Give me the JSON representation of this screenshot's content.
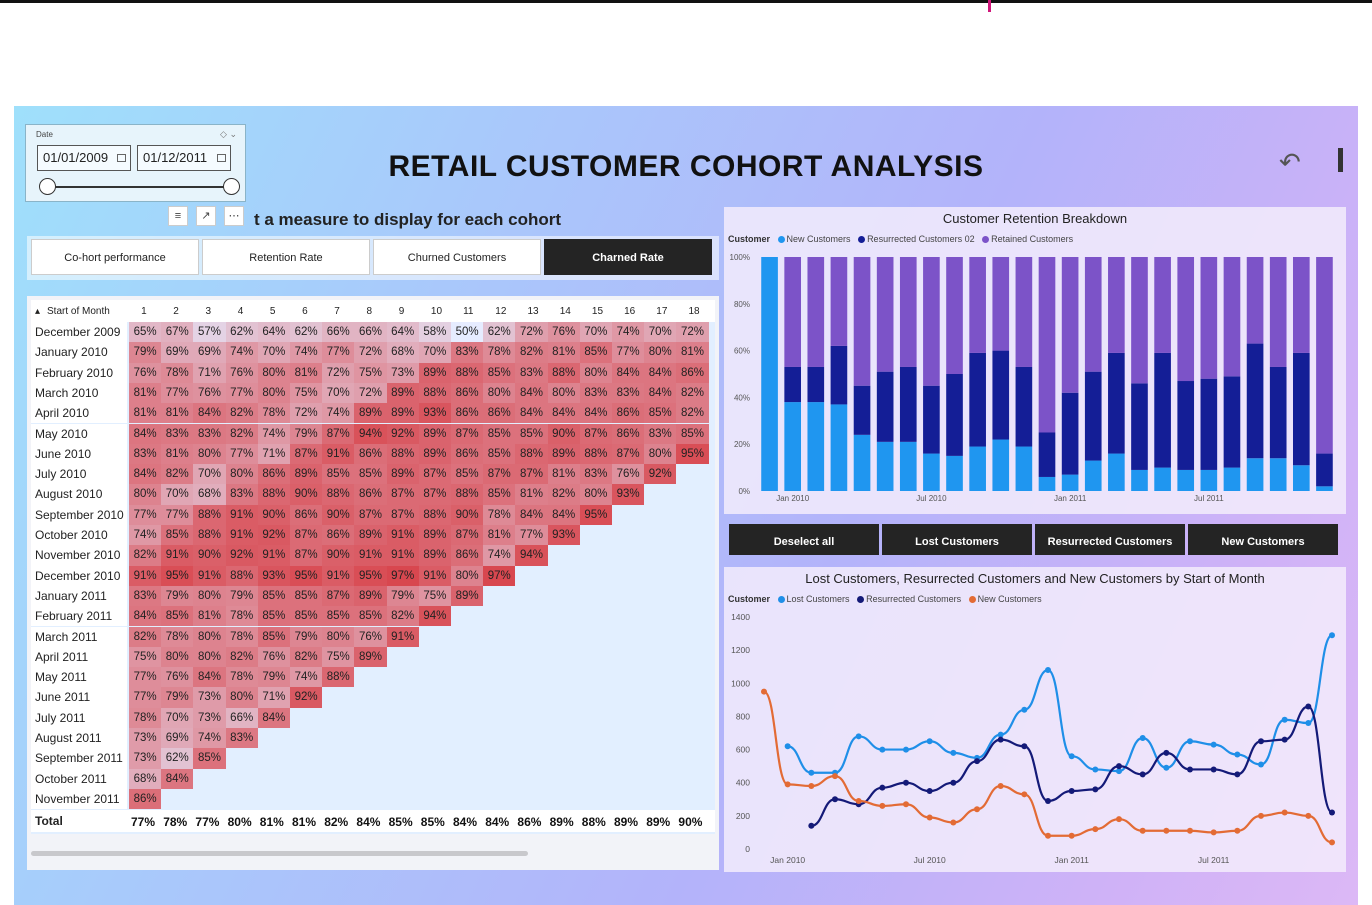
{
  "title": "RETAIL CUSTOMER COHORT ANALYSIS",
  "subtitle": "t a measure to display for each cohort",
  "date_slicer": {
    "label": "Date",
    "start": "01/01/2009",
    "end": "01/12/2011"
  },
  "tabs": [
    "Co-hort performance",
    "Retention Rate",
    "Churned Customers",
    "Charned Rate"
  ],
  "matrix": {
    "corner_label": "Start of Month",
    "columns": [
      "1",
      "2",
      "3",
      "4",
      "5",
      "6",
      "7",
      "8",
      "9",
      "10",
      "11",
      "12",
      "13",
      "14",
      "15",
      "16",
      "17",
      "18"
    ],
    "rows": [
      {
        "label": "December 2009",
        "values": [
          "65%",
          "67%",
          "57%",
          "62%",
          "64%",
          "62%",
          "66%",
          "66%",
          "64%",
          "58%",
          "50%",
          "62%",
          "72%",
          "76%",
          "70%",
          "74%",
          "70%",
          "72%"
        ]
      },
      {
        "label": "January 2010",
        "values": [
          "79%",
          "69%",
          "69%",
          "74%",
          "70%",
          "74%",
          "77%",
          "72%",
          "68%",
          "70%",
          "83%",
          "78%",
          "82%",
          "81%",
          "85%",
          "77%",
          "80%",
          "81%"
        ]
      },
      {
        "label": "February 2010",
        "values": [
          "76%",
          "78%",
          "71%",
          "76%",
          "80%",
          "81%",
          "72%",
          "75%",
          "73%",
          "89%",
          "88%",
          "85%",
          "83%",
          "88%",
          "80%",
          "84%",
          "84%",
          "86%"
        ]
      },
      {
        "label": "March 2010",
        "values": [
          "81%",
          "77%",
          "76%",
          "77%",
          "80%",
          "75%",
          "70%",
          "72%",
          "89%",
          "88%",
          "86%",
          "80%",
          "84%",
          "80%",
          "83%",
          "83%",
          "84%",
          "82%"
        ]
      },
      {
        "label": "April 2010",
        "values": [
          "81%",
          "81%",
          "84%",
          "82%",
          "78%",
          "72%",
          "74%",
          "89%",
          "89%",
          "93%",
          "86%",
          "86%",
          "84%",
          "84%",
          "84%",
          "86%",
          "85%",
          "82%"
        ]
      },
      {
        "label": "May 2010",
        "values": [
          "84%",
          "83%",
          "83%",
          "82%",
          "74%",
          "79%",
          "87%",
          "94%",
          "92%",
          "89%",
          "87%",
          "85%",
          "85%",
          "90%",
          "87%",
          "86%",
          "83%",
          "85%"
        ]
      },
      {
        "label": "June 2010",
        "values": [
          "83%",
          "81%",
          "80%",
          "77%",
          "71%",
          "87%",
          "91%",
          "86%",
          "88%",
          "89%",
          "86%",
          "85%",
          "88%",
          "89%",
          "88%",
          "87%",
          "80%",
          "95%"
        ]
      },
      {
        "label": "July 2010",
        "values": [
          "84%",
          "82%",
          "70%",
          "80%",
          "86%",
          "89%",
          "85%",
          "85%",
          "89%",
          "87%",
          "85%",
          "87%",
          "87%",
          "81%",
          "83%",
          "76%",
          "92%"
        ]
      },
      {
        "label": "August 2010",
        "values": [
          "80%",
          "70%",
          "68%",
          "83%",
          "88%",
          "90%",
          "88%",
          "86%",
          "87%",
          "87%",
          "88%",
          "85%",
          "81%",
          "82%",
          "80%",
          "93%"
        ]
      },
      {
        "label": "September 2010",
        "values": [
          "77%",
          "77%",
          "88%",
          "91%",
          "90%",
          "86%",
          "90%",
          "87%",
          "87%",
          "88%",
          "90%",
          "78%",
          "84%",
          "84%",
          "95%"
        ]
      },
      {
        "label": "October 2010",
        "values": [
          "74%",
          "85%",
          "88%",
          "91%",
          "92%",
          "87%",
          "86%",
          "89%",
          "91%",
          "89%",
          "87%",
          "81%",
          "77%",
          "93%"
        ]
      },
      {
        "label": "November 2010",
        "values": [
          "82%",
          "91%",
          "90%",
          "92%",
          "91%",
          "87%",
          "90%",
          "91%",
          "91%",
          "89%",
          "86%",
          "74%",
          "94%"
        ]
      },
      {
        "label": "December 2010",
        "values": [
          "91%",
          "95%",
          "91%",
          "88%",
          "93%",
          "95%",
          "91%",
          "95%",
          "97%",
          "91%",
          "80%",
          "97%"
        ]
      },
      {
        "label": "January 2011",
        "values": [
          "83%",
          "79%",
          "80%",
          "79%",
          "85%",
          "85%",
          "87%",
          "89%",
          "79%",
          "75%",
          "89%"
        ]
      },
      {
        "label": "February 2011",
        "values": [
          "84%",
          "85%",
          "81%",
          "78%",
          "85%",
          "85%",
          "85%",
          "85%",
          "82%",
          "94%"
        ]
      },
      {
        "label": "March 2011",
        "values": [
          "82%",
          "78%",
          "80%",
          "78%",
          "85%",
          "79%",
          "80%",
          "76%",
          "91%"
        ]
      },
      {
        "label": "April 2011",
        "values": [
          "75%",
          "80%",
          "80%",
          "82%",
          "76%",
          "82%",
          "75%",
          "89%"
        ]
      },
      {
        "label": "May 2011",
        "values": [
          "77%",
          "76%",
          "84%",
          "78%",
          "79%",
          "74%",
          "88%"
        ]
      },
      {
        "label": "June 2011",
        "values": [
          "77%",
          "79%",
          "73%",
          "80%",
          "71%",
          "92%"
        ]
      },
      {
        "label": "July 2011",
        "values": [
          "78%",
          "70%",
          "73%",
          "66%",
          "84%"
        ]
      },
      {
        "label": "August 2011",
        "values": [
          "73%",
          "69%",
          "74%",
          "83%"
        ]
      },
      {
        "label": "September 2011",
        "values": [
          "73%",
          "62%",
          "85%"
        ]
      },
      {
        "label": "October 2011",
        "values": [
          "68%",
          "84%"
        ]
      },
      {
        "label": "November 2011",
        "values": [
          "86%"
        ]
      }
    ],
    "total_label": "Total",
    "totals": [
      "77%",
      "78%",
      "77%",
      "80%",
      "81%",
      "81%",
      "82%",
      "84%",
      "85%",
      "85%",
      "84%",
      "84%",
      "86%",
      "89%",
      "88%",
      "89%",
      "89%",
      "90%"
    ]
  },
  "buttons": [
    "Deselect all",
    "Lost Customers",
    "Resurrected Customers",
    "New Customers"
  ],
  "colors": {
    "new": "#1f96f0",
    "resurrected": "#141e96",
    "retained": "#7c53c8",
    "lost_line": "#1f8fe8",
    "resurr_line": "#141a78",
    "new_line": "#e36b35",
    "cell_hi": "#d8474f",
    "cell_lo": "#e6ecff"
  },
  "chart_data": [
    {
      "type": "bar",
      "title": "Customer Retention Breakdown",
      "legend_title": "Customer",
      "stacked": "100%",
      "x_ticks": [
        "Jan 2010",
        "Jul 2010",
        "Jan 2011",
        "Jul 2011"
      ],
      "y_ticks": [
        "0%",
        "20%",
        "40%",
        "60%",
        "80%",
        "100%"
      ],
      "categories": [
        "Dec 2009",
        "Jan 2010",
        "Feb 2010",
        "Mar 2010",
        "Apr 2010",
        "May 2010",
        "Jun 2010",
        "Jul 2010",
        "Aug 2010",
        "Sep 2010",
        "Oct 2010",
        "Nov 2010",
        "Dec 2010",
        "Jan 2011",
        "Feb 2011",
        "Mar 2011",
        "Apr 2011",
        "May 2011",
        "Jun 2011",
        "Jul 2011",
        "Aug 2011",
        "Sep 2011",
        "Oct 2011",
        "Nov 2011",
        "Dec 2011"
      ],
      "series": [
        {
          "name": "New Customers",
          "values": [
            100,
            38,
            38,
            37,
            24,
            21,
            21,
            16,
            15,
            19,
            22,
            19,
            6,
            7,
            13,
            16,
            9,
            10,
            9,
            9,
            10,
            14,
            14,
            11,
            2
          ]
        },
        {
          "name": "Resurrected Customers 02",
          "values": [
            0,
            15,
            15,
            25,
            21,
            30,
            32,
            29,
            35,
            40,
            38,
            34,
            19,
            35,
            38,
            43,
            37,
            49,
            38,
            39,
            39,
            49,
            39,
            48,
            14
          ]
        },
        {
          "name": "Retained Customers",
          "values": [
            0,
            47,
            47,
            38,
            55,
            49,
            47,
            55,
            50,
            41,
            40,
            47,
            75,
            58,
            49,
            41,
            54,
            41,
            53,
            52,
            51,
            37,
            47,
            41,
            84
          ]
        }
      ]
    },
    {
      "type": "line",
      "title": "Lost Customers, Resurrected Customers and New Customers by Start of Month",
      "legend_title": "Customer",
      "x_ticks": [
        "Jan 2010",
        "Jul 2010",
        "Jan 2011",
        "Jul 2011"
      ],
      "ylim": [
        0,
        1400
      ],
      "y_ticks": [
        "0",
        "200",
        "400",
        "600",
        "800",
        "1000",
        "1200",
        "1400"
      ],
      "categories": [
        "Dec 2009",
        "Jan 2010",
        "Feb 2010",
        "Mar 2010",
        "Apr 2010",
        "May 2010",
        "Jun 2010",
        "Jul 2010",
        "Aug 2010",
        "Sep 2010",
        "Oct 2010",
        "Nov 2010",
        "Dec 2010",
        "Jan 2011",
        "Feb 2011",
        "Mar 2011",
        "Apr 2011",
        "May 2011",
        "Jun 2011",
        "Jul 2011",
        "Aug 2011",
        "Sep 2011",
        "Oct 2011",
        "Nov 2011",
        "Dec 2011"
      ],
      "series": [
        {
          "name": "Lost Customers",
          "values": [
            null,
            620,
            460,
            460,
            680,
            600,
            600,
            650,
            580,
            550,
            690,
            840,
            1080,
            560,
            480,
            470,
            670,
            490,
            650,
            630,
            570,
            510,
            780,
            760,
            1290
          ]
        },
        {
          "name": "Resurrected Customers",
          "values": [
            null,
            null,
            140,
            300,
            270,
            370,
            400,
            350,
            400,
            530,
            660,
            620,
            290,
            350,
            360,
            500,
            450,
            580,
            480,
            480,
            450,
            650,
            660,
            860,
            220
          ]
        },
        {
          "name": "New Customers",
          "values": [
            950,
            390,
            380,
            440,
            290,
            260,
            270,
            190,
            160,
            240,
            380,
            330,
            80,
            80,
            120,
            180,
            110,
            110,
            110,
            100,
            110,
            200,
            220,
            200,
            40
          ]
        }
      ]
    }
  ]
}
